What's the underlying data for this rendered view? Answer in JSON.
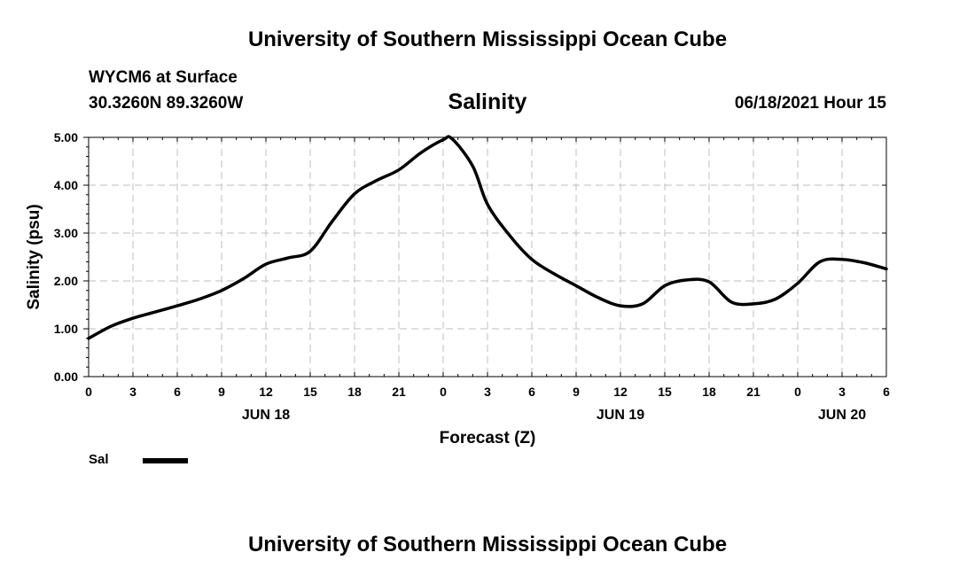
{
  "header": {
    "top_title": "University of Southern Mississippi Ocean Cube",
    "station": "WYCM6 at Surface",
    "coordinates": "30.3260N  89.3260W",
    "datetime": "06/18/2021 Hour 15",
    "bottom_title": "University of Southern Mississippi Ocean Cube"
  },
  "chart_data": {
    "type": "line",
    "title": "Salinity",
    "xlabel": "Forecast (Z)",
    "ylabel": "Salinity (psu)",
    "ylim": [
      0,
      5
    ],
    "y_ticks": [
      "0.00",
      "1.00",
      "2.00",
      "3.00",
      "4.00",
      "5.00"
    ],
    "x_tick_labels": [
      "0",
      "3",
      "6",
      "9",
      "12",
      "15",
      "18",
      "21",
      "0",
      "3",
      "6",
      "9",
      "12",
      "15",
      "18",
      "21",
      "0",
      "3",
      "6"
    ],
    "date_labels": [
      {
        "text": "JUN 18",
        "at_tick": 4
      },
      {
        "text": "JUN 19",
        "at_tick": 12
      },
      {
        "text": "JUN 20",
        "at_tick": 17
      }
    ],
    "grid": true,
    "legend": {
      "placement": "bottom-left",
      "entries": [
        "Sal"
      ]
    },
    "series": [
      {
        "name": "Sal",
        "color": "#000000",
        "x": [
          0,
          1.5,
          3,
          4.5,
          6,
          7.5,
          9,
          10.5,
          12,
          13.5,
          15,
          16.5,
          18,
          19.5,
          21,
          22.5,
          24,
          24.6,
          26,
          27,
          28.5,
          30,
          31.5,
          33,
          34.5,
          36,
          37.5,
          39,
          40.5,
          42,
          43.5,
          45,
          46.5,
          48,
          49.5,
          51,
          52.5,
          54
        ],
        "values": [
          0.8,
          1.05,
          1.22,
          1.35,
          1.48,
          1.62,
          1.8,
          2.05,
          2.35,
          2.48,
          2.62,
          3.25,
          3.82,
          4.1,
          4.32,
          4.68,
          4.95,
          4.97,
          4.4,
          3.6,
          2.95,
          2.45,
          2.15,
          1.9,
          1.65,
          1.48,
          1.52,
          1.9,
          2.02,
          1.98,
          1.56,
          1.52,
          1.62,
          1.95,
          2.4,
          2.45,
          2.38,
          2.25
        ]
      }
    ]
  }
}
